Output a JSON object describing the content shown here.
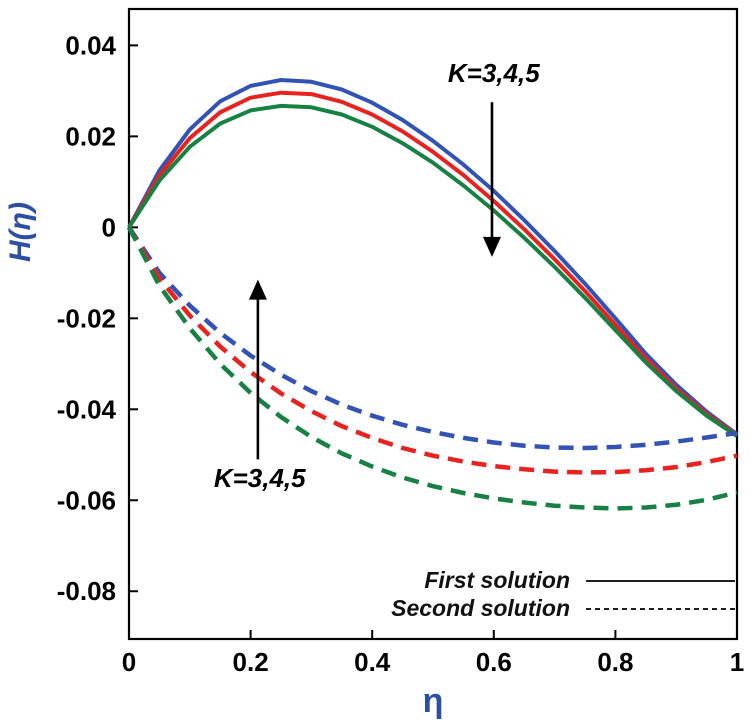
{
  "figure": {
    "background": "#ffffff",
    "border_color": "#000000"
  },
  "chart_data": {
    "type": "line",
    "title": "",
    "xlabel": "η",
    "ylabel": "H(η)",
    "xlim": [
      0,
      1
    ],
    "ylim": [
      -0.0905,
      0.048
    ],
    "grid": false,
    "axis_label_color": "#2d4fa1",
    "tick_label_color": "#000000",
    "xticks": [
      0,
      0.2,
      0.4,
      0.6,
      0.8,
      1
    ],
    "xtick_labels": [
      "0",
      "0.2",
      "0.4",
      "0.6",
      "0.8",
      "1"
    ],
    "yticks": [
      0.04,
      0.02,
      0,
      -0.02,
      -0.04,
      -0.06,
      -0.08
    ],
    "ytick_labels": [
      "0.04",
      "0.02",
      "0",
      "-0.02",
      "-0.04",
      "-0.06",
      "-0.08"
    ],
    "x": [
      0,
      0.05,
      0.1,
      0.15,
      0.2,
      0.25,
      0.3,
      0.35,
      0.4,
      0.45,
      0.5,
      0.55,
      0.6,
      0.65,
      0.7,
      0.75,
      0.8,
      0.85,
      0.9,
      0.95,
      1
    ],
    "series": [
      {
        "id": "first-solution-k3",
        "name": "First solution, K=3",
        "color": "#3353b4",
        "style": "solid",
        "y": [
          0,
          0.0125,
          0.0215,
          0.0277,
          0.0311,
          0.0324,
          0.032,
          0.0303,
          0.0274,
          0.0236,
          0.019,
          0.0138,
          0.008,
          0.0016,
          -0.0052,
          -0.0124,
          -0.02,
          -0.0278,
          -0.0346,
          -0.0405,
          -0.0455
        ]
      },
      {
        "id": "first-solution-k4",
        "name": "First solution, K=4",
        "color": "#e8221f",
        "style": "solid",
        "y": [
          0,
          0.0114,
          0.0196,
          0.0253,
          0.0285,
          0.0296,
          0.0293,
          0.0276,
          0.0248,
          0.0211,
          0.0166,
          0.0115,
          0.0058,
          -0.0004,
          -0.007,
          -0.014,
          -0.0214,
          -0.0288,
          -0.0354,
          -0.041,
          -0.0457
        ]
      },
      {
        "id": "first-solution-k5",
        "name": "First solution, K=5",
        "color": "#178043",
        "style": "solid",
        "y": [
          0,
          0.0103,
          0.0177,
          0.0228,
          0.0257,
          0.0267,
          0.0264,
          0.0248,
          0.0221,
          0.0185,
          0.0142,
          0.0092,
          0.0037,
          -0.0023,
          -0.0087,
          -0.0155,
          -0.0226,
          -0.0297,
          -0.036,
          -0.0414,
          -0.0459
        ]
      },
      {
        "id": "second-solution-k3",
        "name": "Second solution, K=3",
        "color": "#3353b4",
        "style": "dashed",
        "y": [
          0,
          -0.01,
          -0.0172,
          -0.0232,
          -0.0282,
          -0.0324,
          -0.036,
          -0.039,
          -0.0414,
          -0.0434,
          -0.045,
          -0.0463,
          -0.0473,
          -0.048,
          -0.0484,
          -0.0485,
          -0.0483,
          -0.0478,
          -0.0471,
          -0.0462,
          -0.0452
        ]
      },
      {
        "id": "second-solution-k4",
        "name": "Second solution, K=4",
        "color": "#e8221f",
        "style": "dashed",
        "y": [
          0,
          -0.0112,
          -0.0194,
          -0.0262,
          -0.0318,
          -0.0365,
          -0.0404,
          -0.0437,
          -0.0463,
          -0.0485,
          -0.0502,
          -0.0515,
          -0.0525,
          -0.0532,
          -0.0537,
          -0.0539,
          -0.0538,
          -0.0534,
          -0.0527,
          -0.0516,
          -0.0502
        ]
      },
      {
        "id": "second-solution-k5",
        "name": "Second solution, K=5",
        "color": "#178043",
        "style": "dashed",
        "y": [
          0,
          -0.0128,
          -0.0222,
          -0.03,
          -0.0364,
          -0.0417,
          -0.0461,
          -0.0497,
          -0.0526,
          -0.055,
          -0.0569,
          -0.0584,
          -0.0596,
          -0.0605,
          -0.0612,
          -0.0616,
          -0.0618,
          -0.0616,
          -0.061,
          -0.0599,
          -0.0583
        ]
      }
    ],
    "annotations": [
      {
        "id": "k-label-top",
        "text": "K=3,4,5",
        "x": 0.6,
        "y": 0.032
      },
      {
        "id": "k-label-bottom",
        "text": "K=3,4,5",
        "x": 0.215,
        "y": -0.0571
      }
    ],
    "arrows": [
      {
        "id": "arrow-down",
        "x": 0.597,
        "y_from": 0.0275,
        "y_to": -0.0065,
        "direction": "down"
      },
      {
        "id": "arrow-up",
        "x": 0.212,
        "y_from": -0.051,
        "y_to": -0.0115,
        "direction": "up"
      }
    ],
    "legend": {
      "position": "bottom-right",
      "items": [
        {
          "label": "First solution",
          "style": "solid"
        },
        {
          "label": "Second solution",
          "style": "dashed"
        }
      ]
    }
  }
}
